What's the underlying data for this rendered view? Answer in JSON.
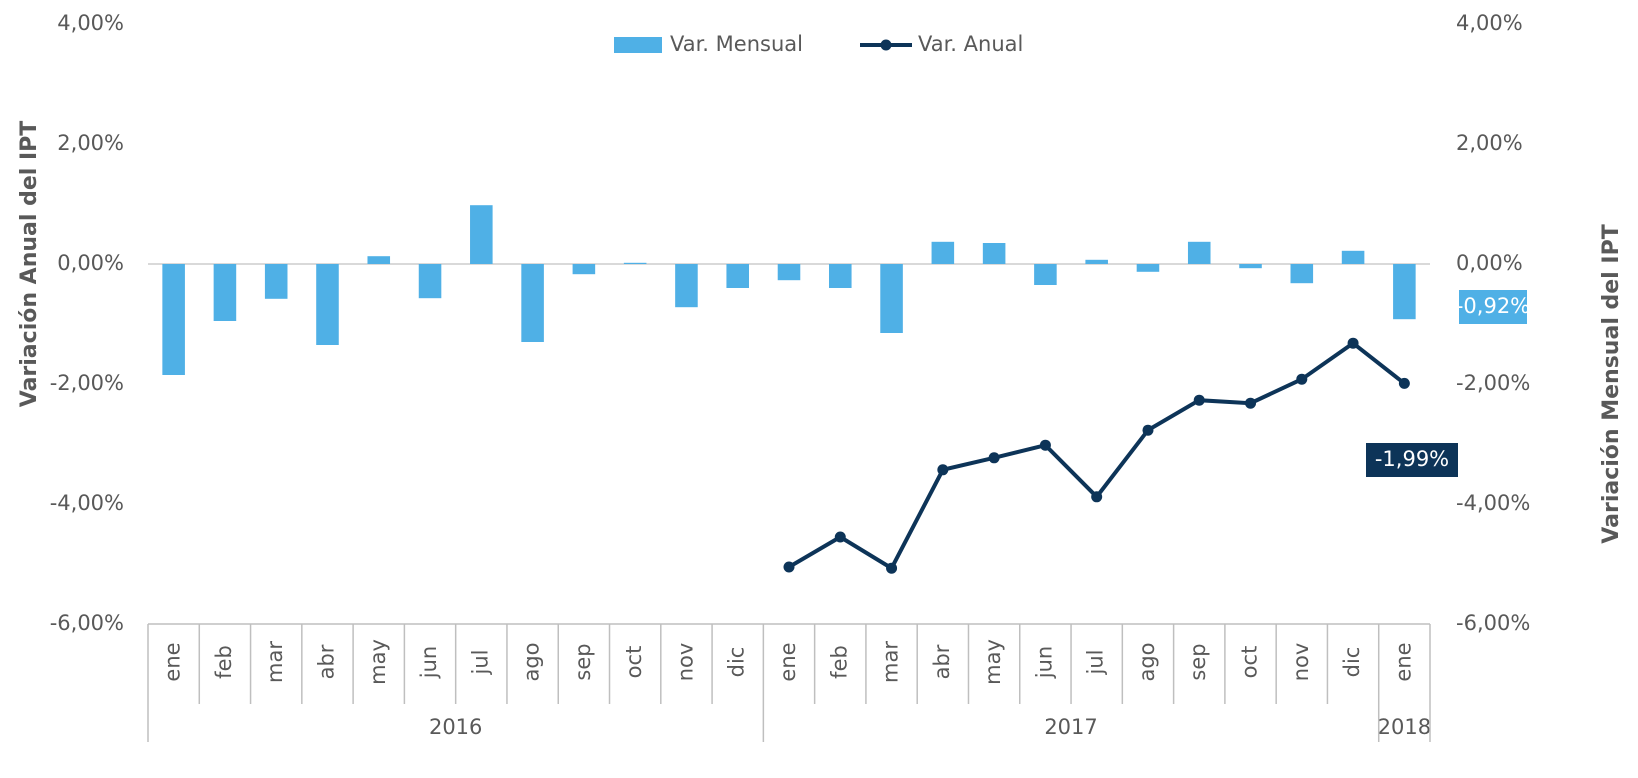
{
  "chart_data": {
    "type": "bar_line",
    "categories": [
      "ene",
      "feb",
      "mar",
      "abr",
      "may",
      "jun",
      "jul",
      "ago",
      "sep",
      "oct",
      "nov",
      "dic",
      "ene",
      "feb",
      "mar",
      "abr",
      "may",
      "jun",
      "jul",
      "ago",
      "sep",
      "oct",
      "nov",
      "dic",
      "ene"
    ],
    "x_groups": [
      {
        "label": "2016",
        "count": 12
      },
      {
        "label": "2017",
        "count": 12
      },
      {
        "label": "2018",
        "count": 1
      }
    ],
    "series": [
      {
        "name": "Var. Mensual",
        "type": "bar",
        "axis": "y2",
        "color": "#4fb0e6",
        "values": [
          -1.85,
          -0.95,
          -0.58,
          -1.35,
          0.13,
          -0.57,
          0.98,
          -1.3,
          -0.17,
          0.02,
          -0.72,
          -0.4,
          -0.27,
          -0.4,
          -1.15,
          0.37,
          0.35,
          -0.35,
          0.07,
          -0.13,
          0.37,
          -0.07,
          -0.32,
          0.22,
          -0.92
        ],
        "value_labels": [
          null,
          null,
          null,
          null,
          null,
          null,
          null,
          null,
          null,
          null,
          null,
          null,
          null,
          null,
          null,
          null,
          null,
          null,
          null,
          null,
          null,
          null,
          null,
          null,
          "-0,92%"
        ]
      },
      {
        "name": "Var. Anual",
        "type": "line",
        "axis": "y",
        "color": "#0d3458",
        "values": [
          null,
          null,
          null,
          null,
          null,
          null,
          null,
          null,
          null,
          null,
          null,
          null,
          -5.05,
          -4.55,
          -5.07,
          -3.43,
          -3.23,
          -3.02,
          -3.88,
          -2.77,
          -2.27,
          -2.32,
          -1.92,
          -1.32,
          -1.99
        ],
        "value_labels": [
          null,
          null,
          null,
          null,
          null,
          null,
          null,
          null,
          null,
          null,
          null,
          null,
          null,
          null,
          null,
          null,
          null,
          null,
          null,
          null,
          null,
          null,
          null,
          null,
          "-1,99%"
        ]
      }
    ],
    "y_label": "Variación Anual del IPT",
    "y2_label": "Variación Mensual del IPT",
    "ylim": [
      -6,
      4
    ],
    "yticks": [
      {
        "value": -6,
        "label": "-6,00%"
      },
      {
        "value": -4,
        "label": "-4,00%"
      },
      {
        "value": -2,
        "label": "-2,00%"
      },
      {
        "value": 0,
        "label": "0,00%"
      },
      {
        "value": 2,
        "label": "2,00%"
      },
      {
        "value": 4,
        "label": "4,00%"
      }
    ],
    "y2lim": [
      -6,
      4
    ],
    "y2ticks": [
      {
        "value": -6,
        "label": "-6,00%"
      },
      {
        "value": -4,
        "label": "-4,00%"
      },
      {
        "value": -2,
        "label": "-2,00%"
      },
      {
        "value": 0,
        "label": "0,00%"
      },
      {
        "value": 2,
        "label": "2,00%"
      },
      {
        "value": 4,
        "label": "4,00%"
      }
    ],
    "legend": "top"
  }
}
